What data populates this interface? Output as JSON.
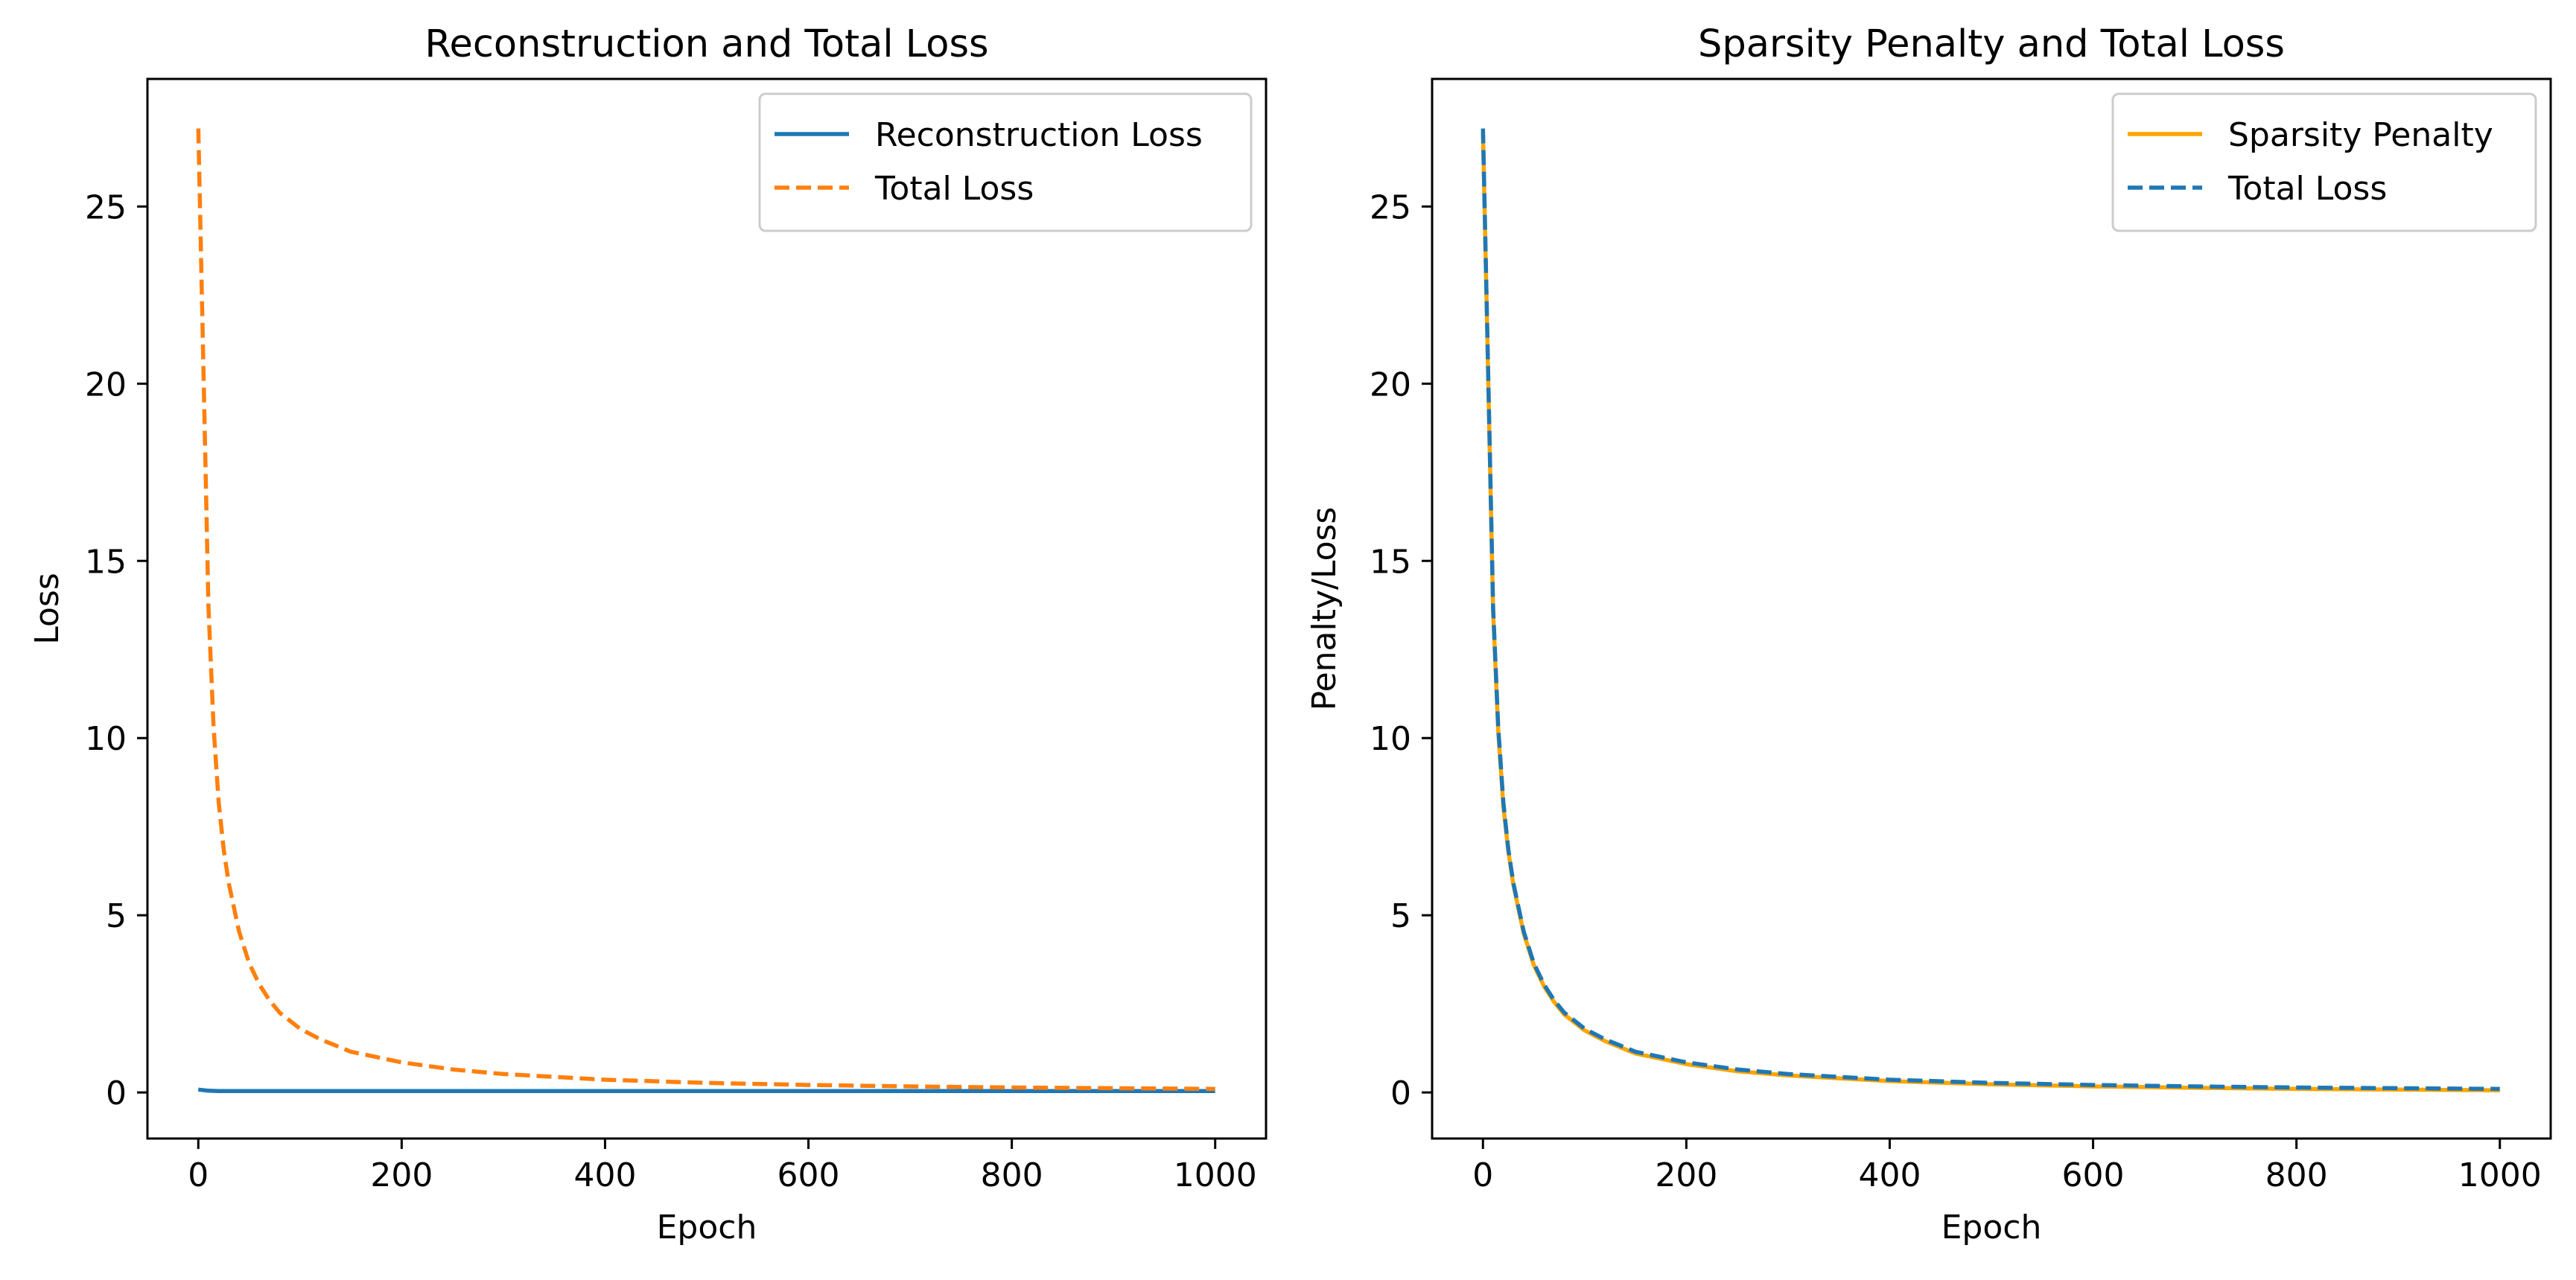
{
  "chart_data": [
    {
      "type": "line",
      "title": "Reconstruction and Total Loss",
      "xlabel": "Epoch",
      "ylabel": "Loss",
      "xlim": [
        -50,
        1050
      ],
      "ylim": [
        -1.3,
        28.6
      ],
      "xticks": [
        0,
        200,
        400,
        600,
        800,
        1000
      ],
      "yticks": [
        0,
        5,
        10,
        15,
        20,
        25
      ],
      "grid": false,
      "legend_placement": "top-right",
      "series": [
        {
          "name": "Reconstruction Loss",
          "color": "#1f77b4",
          "style": "solid",
          "x": [
            0,
            10,
            20,
            50,
            100,
            200,
            400,
            600,
            800,
            1000
          ],
          "values": [
            0.08,
            0.05,
            0.04,
            0.04,
            0.04,
            0.04,
            0.04,
            0.04,
            0.04,
            0.04
          ]
        },
        {
          "name": "Total Loss",
          "color": "#ff7f0e",
          "style": "dashed",
          "x": [
            0,
            5,
            10,
            15,
            20,
            25,
            30,
            40,
            50,
            60,
            70,
            80,
            100,
            120,
            150,
            200,
            250,
            300,
            400,
            500,
            600,
            700,
            800,
            900,
            1000
          ],
          "values": [
            27.2,
            20.5,
            13.7,
            10.3,
            8.2,
            6.85,
            5.9,
            4.55,
            3.65,
            3.05,
            2.6,
            2.25,
            1.8,
            1.5,
            1.15,
            0.85,
            0.65,
            0.52,
            0.36,
            0.27,
            0.21,
            0.17,
            0.14,
            0.12,
            0.1
          ]
        }
      ]
    },
    {
      "type": "line",
      "title": "Sparsity Penalty and Total Loss",
      "xlabel": "Epoch",
      "ylabel": "Penalty/Loss",
      "xlim": [
        -50,
        1050
      ],
      "ylim": [
        -1.3,
        28.6
      ],
      "xticks": [
        0,
        200,
        400,
        600,
        800,
        1000
      ],
      "yticks": [
        0,
        5,
        10,
        15,
        20,
        25
      ],
      "grid": false,
      "legend_placement": "top-right",
      "series": [
        {
          "name": "Sparsity Penalty",
          "color": "#ffa500",
          "style": "solid",
          "x": [
            0,
            5,
            10,
            15,
            20,
            25,
            30,
            40,
            50,
            60,
            70,
            80,
            100,
            120,
            150,
            200,
            250,
            300,
            400,
            500,
            600,
            700,
            800,
            900,
            1000
          ],
          "values": [
            27.1,
            20.4,
            13.6,
            10.2,
            8.1,
            6.8,
            5.85,
            4.5,
            3.6,
            3.0,
            2.55,
            2.2,
            1.75,
            1.45,
            1.1,
            0.8,
            0.6,
            0.48,
            0.32,
            0.23,
            0.17,
            0.13,
            0.1,
            0.08,
            0.06
          ]
        },
        {
          "name": "Total Loss",
          "color": "#1f77b4",
          "style": "dashed",
          "x": [
            0,
            5,
            10,
            15,
            20,
            25,
            30,
            40,
            50,
            60,
            70,
            80,
            100,
            120,
            150,
            200,
            250,
            300,
            400,
            500,
            600,
            700,
            800,
            900,
            1000
          ],
          "values": [
            27.2,
            20.5,
            13.7,
            10.3,
            8.2,
            6.85,
            5.9,
            4.55,
            3.65,
            3.05,
            2.6,
            2.25,
            1.8,
            1.5,
            1.15,
            0.85,
            0.65,
            0.52,
            0.36,
            0.27,
            0.21,
            0.17,
            0.14,
            0.12,
            0.1
          ]
        }
      ]
    }
  ]
}
